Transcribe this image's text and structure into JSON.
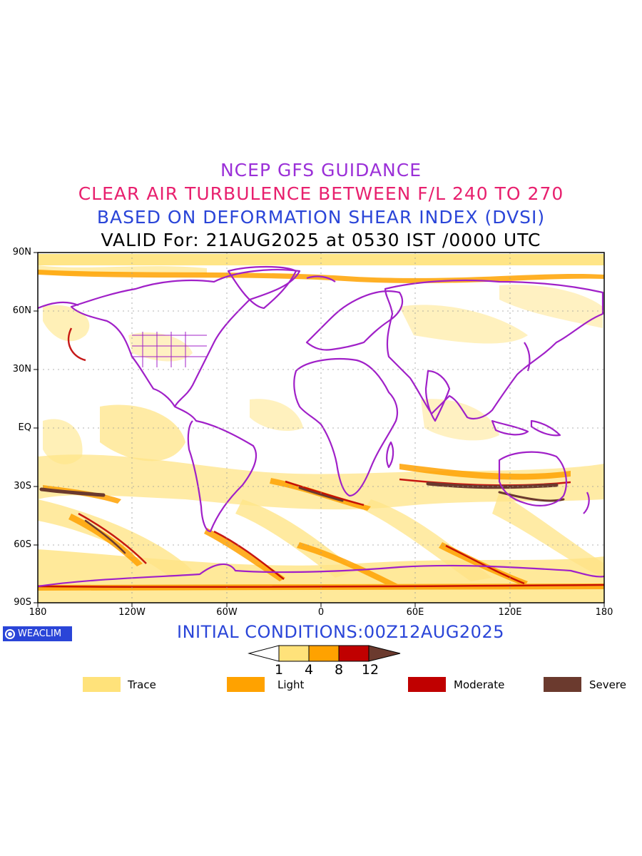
{
  "titles": {
    "line1": "NCEP GFS GUIDANCE",
    "line2": "CLEAR AIR TURBULENCE BETWEEN F/L 240 TO 270",
    "line3": "BASED ON DEFORMATION SHEAR INDEX (DVSI)",
    "line4": "VALID For: 21AUG2025 at 0530 IST /0000 UTC"
  },
  "colors": {
    "title1": "#9b30d8",
    "title2": "#e8206e",
    "title3": "#2a45d8",
    "title4": "#000000",
    "coastline": "#a020c8",
    "trace": "#ffe27a",
    "light": "#ffa200",
    "moderate": "#c00000",
    "severe": "#6b3a2e",
    "badge": "#2a45d8"
  },
  "map": {
    "lat_labels": [
      "90N",
      "60N",
      "30N",
      "EQ",
      "30S",
      "60S",
      "90S"
    ],
    "lon_labels": [
      "180",
      "120W",
      "60W",
      "0",
      "60E",
      "120E",
      "180"
    ],
    "lat_range": [
      -90,
      90
    ],
    "lon_range": [
      -180,
      180
    ],
    "grid": "dotted"
  },
  "badge": {
    "text": "WEACLIM"
  },
  "initial_conditions": "INITIAL CONDITIONS:00Z12AUG2025",
  "colorbar": {
    "labels": [
      "1",
      "4",
      "8",
      "12"
    ],
    "fills": [
      "#ffffff",
      "#ffe27a",
      "#ffa200",
      "#c00000",
      "#6b3a2e"
    ]
  },
  "legend": [
    {
      "label": "Trace",
      "color": "#ffe27a"
    },
    {
      "label": "Light",
      "color": "#ffa200"
    },
    {
      "label": "Moderate",
      "color": "#c00000"
    },
    {
      "label": "Severe",
      "color": "#6b3a2e"
    }
  ]
}
